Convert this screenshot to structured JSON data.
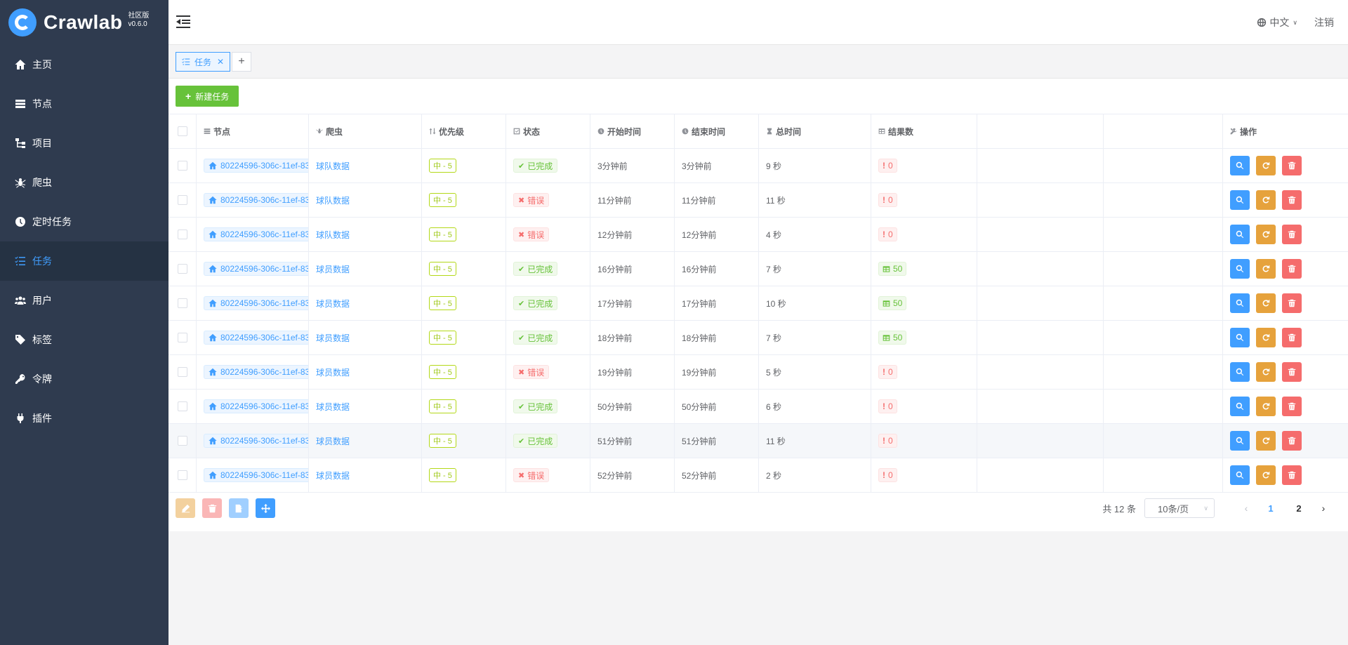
{
  "app": {
    "name": "Crawlab",
    "edition": "社区版",
    "version": "v0.6.0"
  },
  "sidebar": {
    "items": [
      {
        "label": "主页",
        "icon": "home-icon"
      },
      {
        "label": "节点",
        "icon": "server-icon"
      },
      {
        "label": "项目",
        "icon": "project-icon"
      },
      {
        "label": "爬虫",
        "icon": "spider-icon"
      },
      {
        "label": "定时任务",
        "icon": "clock-icon"
      },
      {
        "label": "任务",
        "icon": "tasks-icon",
        "active": true
      },
      {
        "label": "用户",
        "icon": "users-icon"
      },
      {
        "label": "标签",
        "icon": "tag-icon"
      },
      {
        "label": "令牌",
        "icon": "key-icon"
      },
      {
        "label": "插件",
        "icon": "plug-icon"
      }
    ]
  },
  "header": {
    "language": "中文",
    "logout": "注销"
  },
  "tabs": [
    {
      "label": "任务"
    }
  ],
  "toolbar": {
    "new_task": "新建任务"
  },
  "table": {
    "columns": {
      "node": "节点",
      "spider": "爬虫",
      "priority": "优先级",
      "status": "状态",
      "start": "开始时间",
      "end": "结束时间",
      "total": "总时间",
      "results": "结果数",
      "actions": "操作"
    },
    "rows": [
      {
        "node": "80224596-306c-11ef-83",
        "spider": "球队数据",
        "priority": "中 - 5",
        "status": "已完成",
        "status_type": "ok",
        "start": "3分钟前",
        "end": "3分钟前",
        "total": "9 秒",
        "results": "0"
      },
      {
        "node": "80224596-306c-11ef-83",
        "spider": "球队数据",
        "priority": "中 - 5",
        "status": "错误",
        "status_type": "err",
        "start": "11分钟前",
        "end": "11分钟前",
        "total": "11 秒",
        "results": "0"
      },
      {
        "node": "80224596-306c-11ef-83",
        "spider": "球队数据",
        "priority": "中 - 5",
        "status": "错误",
        "status_type": "err",
        "start": "12分钟前",
        "end": "12分钟前",
        "total": "4 秒",
        "results": "0"
      },
      {
        "node": "80224596-306c-11ef-83",
        "spider": "球员数据",
        "priority": "中 - 5",
        "status": "已完成",
        "status_type": "ok",
        "start": "16分钟前",
        "end": "16分钟前",
        "total": "7 秒",
        "results": "50"
      },
      {
        "node": "80224596-306c-11ef-83",
        "spider": "球员数据",
        "priority": "中 - 5",
        "status": "已完成",
        "status_type": "ok",
        "start": "17分钟前",
        "end": "17分钟前",
        "total": "10 秒",
        "results": "50"
      },
      {
        "node": "80224596-306c-11ef-83",
        "spider": "球员数据",
        "priority": "中 - 5",
        "status": "已完成",
        "status_type": "ok",
        "start": "18分钟前",
        "end": "18分钟前",
        "total": "7 秒",
        "results": "50"
      },
      {
        "node": "80224596-306c-11ef-83",
        "spider": "球员数据",
        "priority": "中 - 5",
        "status": "错误",
        "status_type": "err",
        "start": "19分钟前",
        "end": "19分钟前",
        "total": "5 秒",
        "results": "0"
      },
      {
        "node": "80224596-306c-11ef-83",
        "spider": "球员数据",
        "priority": "中 - 5",
        "status": "已完成",
        "status_type": "ok",
        "start": "50分钟前",
        "end": "50分钟前",
        "total": "6 秒",
        "results": "0"
      },
      {
        "node": "80224596-306c-11ef-83",
        "spider": "球员数据",
        "priority": "中 - 5",
        "status": "已完成",
        "status_type": "ok",
        "start": "51分钟前",
        "end": "51分钟前",
        "total": "11 秒",
        "results": "0"
      },
      {
        "node": "80224596-306c-11ef-83",
        "spider": "球员数据",
        "priority": "中 - 5",
        "status": "错误",
        "status_type": "err",
        "start": "52分钟前",
        "end": "52分钟前",
        "total": "2 秒",
        "results": "0"
      }
    ]
  },
  "pagination": {
    "total": "共 12 条",
    "page_size": "10条/页",
    "pages": [
      "1",
      "2"
    ],
    "current": "1"
  },
  "colors": {
    "primary": "#409eff",
    "success": "#67c23a",
    "warning": "#e6a23c",
    "danger": "#f56c6c",
    "sidebar": "#2f3b4f"
  }
}
